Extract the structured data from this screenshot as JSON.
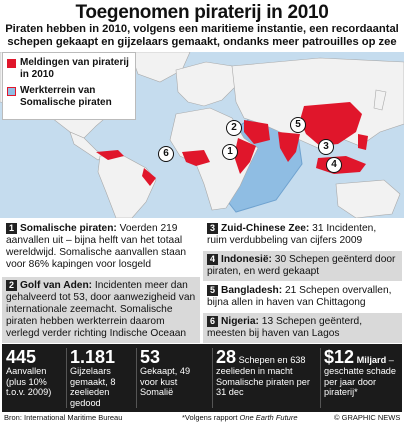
{
  "title": "Toegenomen piraterij in 2010",
  "subtitle": "Piraten hebben in 2010, volgens een maritieme instantie, een recordaantal schepen gekaapt en gijzelaars gemaakt, ondanks meer patrouilles op zee",
  "legend": {
    "items": [
      {
        "label": "Meldingen van piraterij in 2010",
        "color": "#e0162b"
      },
      {
        "label": "Werkterrein van Somalische piraten",
        "color": "#8fbde3"
      }
    ]
  },
  "map": {
    "markers": [
      "1",
      "2",
      "3",
      "4",
      "5",
      "6"
    ],
    "colors": {
      "sea": "#c5dcee",
      "land": "#f2f2f2",
      "piracy": "#e0162b",
      "somali_zone": "#8fbde3"
    }
  },
  "panels": {
    "p1": {
      "num": "1",
      "heading": "Somalische piraten:",
      "text": "Voerden 219 aanvallen uit – bijna helft van het totaal wereldwijd. Somalische aanvallen staan voor 86% kapingen voor losgeld"
    },
    "p2": {
      "num": "2",
      "heading": "Golf van Aden:",
      "text": "Incidenten meer dan gehalveerd tot 53, door aanwezigheid van internationale zeemacht. Somalische piraten hebben werkterrein daarom verlegd verder richting Indische Oceaan"
    },
    "p3": {
      "num": "3",
      "heading": "Zuid-Chinese Zee:",
      "text": "31 Incidenten, ruim verdubbeling van cijfers 2009"
    },
    "p4": {
      "num": "4",
      "heading": "Indonesië:",
      "text": "30 Schepen geënterd door piraten, en werd gekaapt"
    },
    "p5": {
      "num": "5",
      "heading": "Bangladesh:",
      "text": "21 Schepen overvallen, bijna allen in haven van Chittagong"
    },
    "p6": {
      "num": "6",
      "heading": "Nigeria:",
      "text": "13 Schepen geënterd, meesten bij haven van Lagos"
    }
  },
  "stats": [
    {
      "big": "445",
      "text": "Aanvallen (plus 10% t.o.v. 2009)"
    },
    {
      "big": "1.181",
      "text": "Gijzelaars gemaakt, 8 zeelieden gedood"
    },
    {
      "big": "53",
      "text": "Gekaapt, 49 voor kust Somalië"
    },
    {
      "big": "28",
      "text": "Schepen en 638 zeelieden in macht Somalische piraten per 31 dec"
    },
    {
      "big": "$12",
      "big_suffix": "Miljard",
      "text": "– geschatte schade per jaar door piraterij*"
    }
  ],
  "footer": {
    "source": "Bron: International Maritime Bureau",
    "note_prefix": "*Volgens rapport ",
    "note_italic": "One Earth Future",
    "credit": "© GRAPHIC NEWS"
  }
}
